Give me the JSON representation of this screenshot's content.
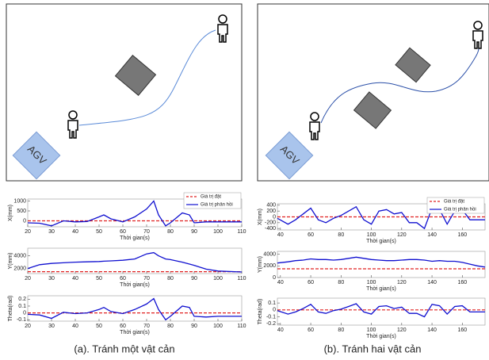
{
  "diagrams": [
    {
      "label": "AGV",
      "caption": "(a). Tránh một vật cản"
    },
    {
      "label": "AGV",
      "caption": "(b). Tránh hai vật cản"
    }
  ],
  "chart_data": [
    {
      "type": "line",
      "x": [
        20,
        25,
        30,
        35,
        40,
        45,
        50,
        52,
        55,
        60,
        65,
        70,
        73,
        75,
        78,
        80,
        85,
        88,
        90,
        95,
        100,
        110
      ],
      "series": [
        {
          "name": "Giá trị đặt",
          "color": "#e02020",
          "values": [
            0,
            0,
            0,
            0,
            0,
            0,
            0,
            0,
            0,
            0,
            0,
            0,
            0,
            0,
            0,
            0,
            0,
            0,
            0,
            0,
            0,
            0
          ]
        },
        {
          "name": "Giá trị phản hồi",
          "color": "#1010d0",
          "values": [
            -100,
            -120,
            -250,
            0,
            -50,
            -30,
            200,
            300,
            100,
            -50,
            200,
            600,
            1000,
            300,
            -250,
            -100,
            400,
            300,
            -100,
            -50,
            -50,
            -50
          ]
        }
      ],
      "xlim": [
        20,
        110
      ],
      "xticks": [
        20,
        30,
        40,
        50,
        60,
        70,
        80,
        90,
        100,
        110
      ],
      "ylim": [
        -300,
        1100
      ],
      "yticks": [
        0,
        500,
        1000
      ],
      "xlabel": "Thời gian(s)",
      "ylabel": "X(mm)",
      "legend": "upper right"
    },
    {
      "type": "line",
      "x": [
        20,
        25,
        30,
        35,
        40,
        45,
        50,
        52,
        55,
        60,
        65,
        70,
        73,
        75,
        78,
        80,
        85,
        88,
        90,
        95,
        100,
        110
      ],
      "series": [
        {
          "color": "#e02020",
          "values": [
            1500,
            1500,
            1500,
            1500,
            1500,
            1500,
            1500,
            1500,
            1500,
            1500,
            1500,
            1500,
            1500,
            1500,
            1500,
            1500,
            1500,
            1500,
            1500,
            1500,
            1500,
            1500
          ]
        },
        {
          "color": "#1010d0",
          "values": [
            2000,
            2600,
            2800,
            2900,
            3000,
            3050,
            3100,
            3150,
            3200,
            3300,
            3500,
            4300,
            4500,
            4000,
            3500,
            3400,
            3000,
            2700,
            2500,
            1900,
            1600,
            1450
          ]
        }
      ],
      "xlim": [
        20,
        110
      ],
      "xticks": [
        20,
        30,
        40,
        50,
        60,
        70,
        80,
        90,
        100,
        110
      ],
      "ylim": [
        1200,
        5200
      ],
      "yticks": [
        2000,
        4000
      ],
      "xlabel": "Thời gian(s)",
      "ylabel": "Y(mm)"
    },
    {
      "type": "line",
      "x": [
        20,
        25,
        30,
        35,
        40,
        45,
        50,
        52,
        55,
        60,
        65,
        70,
        73,
        75,
        78,
        80,
        85,
        88,
        90,
        95,
        100,
        110
      ],
      "series": [
        {
          "color": "#e02020",
          "values": [
            0,
            0,
            0,
            0,
            0,
            0,
            0,
            0,
            0,
            0,
            0,
            0,
            0,
            0,
            0,
            0,
            0,
            0,
            0,
            0,
            0,
            0
          ]
        },
        {
          "color": "#1010d0",
          "values": [
            -0.02,
            -0.03,
            -0.08,
            0.01,
            -0.01,
            0,
            0.05,
            0.08,
            0.02,
            -0.01,
            0.05,
            0.13,
            0.21,
            0.05,
            -0.1,
            -0.05,
            0.1,
            0.08,
            -0.05,
            -0.06,
            -0.05,
            -0.05
          ]
        }
      ],
      "xlim": [
        20,
        110
      ],
      "xticks": [
        20,
        30,
        40,
        50,
        60,
        70,
        80,
        90,
        100,
        110
      ],
      "ylim": [
        -0.12,
        0.25
      ],
      "yticks": [
        -0.1,
        0,
        0.1,
        0.2
      ],
      "xlabel": "Thời gian(s)",
      "ylabel": "Theta(rad)"
    },
    {
      "type": "line",
      "x": [
        38,
        45,
        50,
        55,
        60,
        65,
        70,
        75,
        80,
        85,
        90,
        95,
        100,
        105,
        110,
        115,
        120,
        125,
        130,
        135,
        140,
        145,
        150,
        155,
        160,
        165,
        170,
        175
      ],
      "series": [
        {
          "name": "Giá trị đặt",
          "color": "#e02020",
          "values": [
            0,
            0,
            0,
            0,
            0,
            0,
            0,
            0,
            0,
            0,
            0,
            0,
            0,
            0,
            0,
            0,
            0,
            0,
            0,
            0,
            0,
            0,
            0,
            0,
            0,
            0,
            0,
            0
          ]
        },
        {
          "name": "Giá trị phản hồi",
          "color": "#1010d0",
          "values": [
            -50,
            -250,
            -100,
            100,
            300,
            -100,
            -200,
            -50,
            50,
            200,
            350,
            -100,
            -250,
            200,
            250,
            100,
            150,
            -200,
            -200,
            -400,
            300,
            250,
            -250,
            200,
            250,
            -100,
            -100,
            -100
          ]
        }
      ],
      "xlim": [
        38,
        175
      ],
      "xticks": [
        40,
        60,
        80,
        100,
        120,
        140,
        160
      ],
      "ylim": [
        -450,
        450
      ],
      "yticks": [
        -400,
        -200,
        0,
        200,
        400
      ],
      "xlabel": "Thời gian(s)",
      "ylabel": "X(mm)",
      "legend": "upper right"
    },
    {
      "type": "line",
      "x": [
        38,
        45,
        50,
        55,
        60,
        65,
        70,
        75,
        80,
        85,
        90,
        95,
        100,
        105,
        110,
        115,
        120,
        125,
        130,
        135,
        140,
        145,
        150,
        155,
        160,
        165,
        170,
        175
      ],
      "series": [
        {
          "color": "#e02020",
          "values": [
            1500,
            1500,
            1500,
            1500,
            1500,
            1500,
            1500,
            1500,
            1500,
            1500,
            1500,
            1500,
            1500,
            1500,
            1500,
            1500,
            1500,
            1500,
            1500,
            1500,
            1500,
            1500,
            1500,
            1500,
            1500,
            1500,
            1500,
            1500
          ]
        },
        {
          "color": "#1010d0",
          "values": [
            2500,
            2700,
            2900,
            3000,
            3200,
            3100,
            3100,
            3000,
            3100,
            3300,
            3500,
            3300,
            3100,
            3000,
            2900,
            2900,
            3000,
            3100,
            3100,
            3000,
            2800,
            2900,
            2800,
            2800,
            2600,
            2300,
            2000,
            1800
          ]
        }
      ],
      "xlim": [
        38,
        175
      ],
      "xticks": [
        40,
        60,
        80,
        100,
        120,
        140,
        160
      ],
      "ylim": [
        0,
        4500
      ],
      "yticks": [
        0,
        2000,
        4000
      ],
      "xlabel": "Thời gian(s)",
      "ylabel": "Y(mm)"
    },
    {
      "type": "line",
      "x": [
        38,
        45,
        50,
        55,
        60,
        65,
        70,
        75,
        80,
        85,
        90,
        95,
        100,
        105,
        110,
        115,
        120,
        125,
        130,
        135,
        140,
        145,
        150,
        155,
        160,
        165,
        170,
        175
      ],
      "series": [
        {
          "color": "#e02020",
          "values": [
            0,
            0,
            0,
            0,
            0,
            0,
            0,
            0,
            0,
            0,
            0,
            0,
            0,
            0,
            0,
            0,
            0,
            0,
            0,
            0,
            0,
            0,
            0,
            0,
            0,
            0,
            0,
            0
          ]
        },
        {
          "color": "#1010d0",
          "values": [
            -0.01,
            -0.06,
            -0.03,
            0.02,
            0.08,
            -0.03,
            -0.05,
            -0.01,
            0.01,
            0.05,
            0.09,
            -0.03,
            -0.06,
            0.05,
            0.06,
            0.02,
            0.04,
            -0.05,
            -0.05,
            -0.1,
            0.08,
            0.06,
            -0.06,
            0.05,
            0.06,
            -0.03,
            -0.03,
            -0.03
          ]
        }
      ],
      "xlim": [
        38,
        175
      ],
      "xticks": [
        40,
        60,
        80,
        100,
        120,
        140,
        160
      ],
      "ylim": [
        -0.22,
        0.17
      ],
      "yticks": [
        -0.2,
        -0.1,
        0,
        0.1
      ],
      "xlabel": "Thời gian(s)",
      "ylabel": "Theta(rad)"
    }
  ]
}
